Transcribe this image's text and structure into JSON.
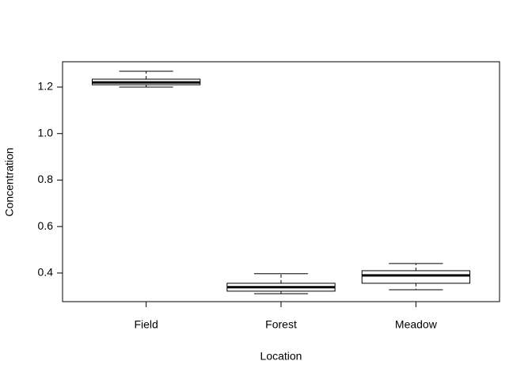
{
  "chart_data": {
    "type": "boxplot",
    "xlabel": "Location",
    "ylabel": "Concentration",
    "categories": [
      "Field",
      "Forest",
      "Meadow"
    ],
    "boxes": [
      {
        "min": 1.2,
        "q1": 1.21,
        "median": 1.22,
        "q3": 1.234,
        "max": 1.268
      },
      {
        "min": 0.311,
        "q1": 0.322,
        "median": 0.339,
        "q3": 0.356,
        "max": 0.397
      },
      {
        "min": 0.328,
        "q1": 0.356,
        "median": 0.39,
        "q3": 0.41,
        "max": 0.441
      }
    ],
    "color": "#ffffff",
    "ylim": [
      0.277,
      1.309
    ],
    "yticks": [
      0.4,
      0.6,
      0.8,
      {
        "value": 1,
        "label": "1.0"
      },
      1.2
    ]
  }
}
